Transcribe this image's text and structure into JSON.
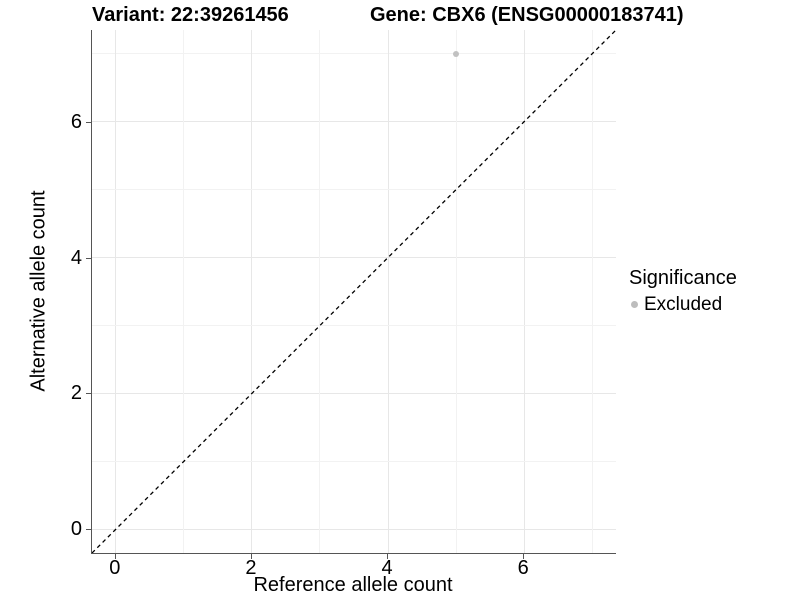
{
  "titles": {
    "variant": "Variant: 22:39261456",
    "gene": "Gene: CBX6 (ENSG00000183741)"
  },
  "axes": {
    "x_label": "Reference allele count",
    "y_label": "Alternative allele count"
  },
  "legend": {
    "title": "Significance",
    "items": [
      {
        "label": "Excluded",
        "color": "#bdbdbd"
      }
    ]
  },
  "colors": {
    "background": "#ffffff",
    "axis_line": "#555555",
    "grid_major": "#e7e7e7",
    "grid_minor": "#f2f2f2",
    "point": "#c1c1c1",
    "reference_line": "#000000",
    "text": "#000000"
  },
  "chart_data": {
    "type": "scatter",
    "title": "Variant: 22:39261456  /  Gene: CBX6 (ENSG00000183741)",
    "xlabel": "Reference allele count",
    "ylabel": "Alternative allele count",
    "xlim": [
      -0.35,
      7.35
    ],
    "ylim": [
      -0.35,
      7.35
    ],
    "x_ticks": [
      0,
      2,
      4,
      6
    ],
    "y_ticks": [
      0,
      2,
      4,
      6
    ],
    "x_minor_ticks": [
      1,
      3,
      5,
      7
    ],
    "y_minor_ticks": [
      1,
      3,
      5,
      7
    ],
    "grid": true,
    "legend_title": "Significance",
    "legend_position": "right",
    "series": [
      {
        "name": "Excluded",
        "color": "#c1c1c1",
        "points": [
          {
            "x": 5,
            "y": 7
          }
        ]
      }
    ],
    "reference_line": {
      "type": "identity",
      "style": "dashed",
      "color": "#000000",
      "from": [
        -0.35,
        -0.35
      ],
      "to": [
        7.35,
        7.35
      ]
    }
  }
}
